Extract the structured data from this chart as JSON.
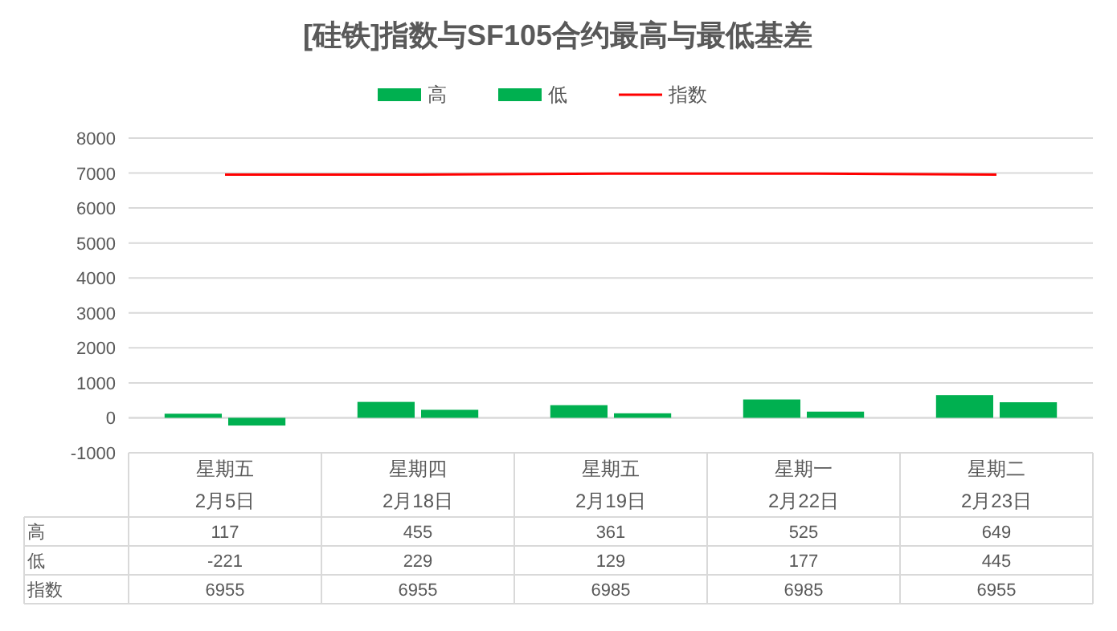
{
  "chart_data": {
    "type": "bar",
    "title": "[硅铁]指数与SF105合约最高与最低基差",
    "categories": [
      "星期五\n2月5日",
      "星期四\n2月18日",
      "星期五\n2月19日",
      "星期一\n2月22日",
      "星期二\n2月23日"
    ],
    "series": [
      {
        "name": "高",
        "color": "#00b050",
        "values": [
          117,
          455,
          361,
          525,
          649
        ]
      },
      {
        "name": "低",
        "color": "#00b050",
        "values": [
          -221,
          229,
          129,
          177,
          445
        ]
      },
      {
        "name": "指数",
        "type": "line",
        "color": "#ff0000",
        "values": [
          6955,
          6955,
          6985,
          6985,
          6955
        ]
      }
    ],
    "ylim": [
      -1000,
      8000
    ],
    "yticks": [
      -1000,
      0,
      1000,
      2000,
      3000,
      4000,
      5000,
      6000,
      7000,
      8000
    ],
    "grid": "y",
    "legend": "top",
    "data_labels": true
  }
}
